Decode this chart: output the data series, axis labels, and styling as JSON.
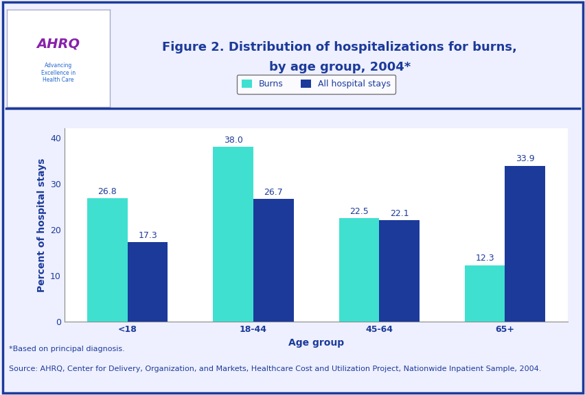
{
  "title_line1": "Figure 2. Distribution of hospitalizations for burns,",
  "title_line2": "by age group, 2004*",
  "categories": [
    "<18",
    "18-44",
    "45-64",
    "65+"
  ],
  "burns_values": [
    26.8,
    38.0,
    22.5,
    12.3
  ],
  "hospital_values": [
    17.3,
    26.7,
    22.1,
    33.9
  ],
  "burns_color": "#40E0D0",
  "hospital_color": "#1C3A9A",
  "xlabel": "Age group",
  "ylabel": "Percent of hospital stays",
  "ylim": [
    0,
    42
  ],
  "yticks": [
    0,
    10,
    20,
    30,
    40
  ],
  "legend_labels": [
    "Burns",
    "All hospital stays"
  ],
  "bar_width": 0.32,
  "background_color": "#EEF0FF",
  "plot_bg_color": "#FFFFFF",
  "outer_bg_color": "#EEF0FF",
  "title_color": "#1C3A9A",
  "axis_label_color": "#1C3A9A",
  "tick_label_color": "#1C3A9A",
  "value_label_color": "#1C3A9A",
  "border_color": "#1C3A9A",
  "separator_color": "#1C3A9A",
  "footer_note": "*Based on principal diagnosis.",
  "footer_source": "Source: AHRQ, Center for Delivery, Organization, and Markets, Healthcare Cost and Utilization Project, Nationwide Inpatient Sample, 2004.",
  "title_fontsize": 13,
  "axis_label_fontsize": 10,
  "tick_fontsize": 9,
  "value_fontsize": 9,
  "legend_fontsize": 9,
  "footer_fontsize": 8
}
